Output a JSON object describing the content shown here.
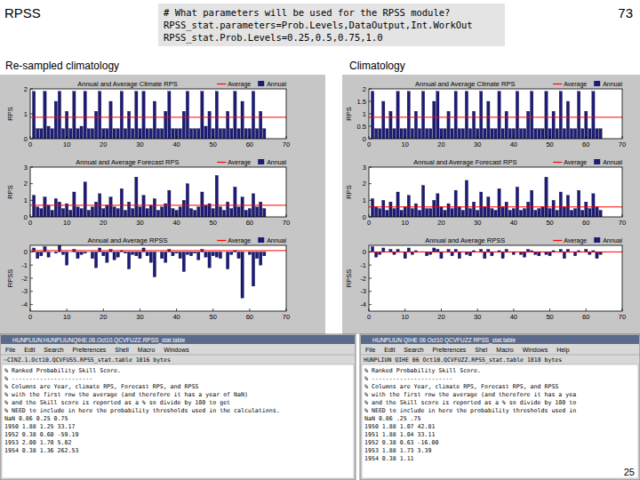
{
  "slide": {
    "title": "RPSS",
    "page_number": "73",
    "footer_number": "25",
    "code": [
      "# What parameters will be used for the RPSS module?",
      "RPSS_stat.parameters=Prob.Levels,DataOutput,Int.WorkOut",
      "RPSS_stat.Prob.Levels=0.25,0.5,0.75,1.0"
    ],
    "panel_labels": [
      "Re-sampled climatology",
      "Climatology"
    ]
  },
  "chart_data": [
    {
      "type": "bar",
      "title": "Annual and Average Climate RPS",
      "y_label": "RPS",
      "legend": "top right",
      "x": [
        1,
        2,
        3,
        4,
        5,
        6,
        7,
        8,
        9,
        10,
        11,
        12,
        13,
        14,
        15,
        16,
        17,
        18,
        19,
        20,
        21,
        22,
        23,
        24,
        25,
        26,
        27,
        28,
        29,
        30,
        31,
        32,
        33,
        34,
        35,
        36,
        37,
        38,
        39,
        40,
        41,
        42,
        43,
        44,
        45,
        46,
        47,
        48,
        49,
        50,
        51,
        52,
        53,
        54,
        55,
        56,
        57,
        58,
        59,
        60,
        61,
        62,
        63,
        64
      ],
      "xlim": [
        0,
        70
      ],
      "xticks": [
        0,
        10,
        20,
        30,
        40,
        50,
        60,
        70
      ],
      "ylim": [
        0,
        2
      ],
      "yticks": [
        0,
        1,
        2
      ],
      "series": [
        {
          "name": "Average",
          "type": "line",
          "color": "#ff0000",
          "x": [
            0,
            70
          ],
          "values": [
            0.86,
            0.86
          ]
        },
        {
          "name": "Annual",
          "type": "bar",
          "color": "#1c1c78",
          "values": [
            1.9,
            0.4,
            0.4,
            1.9,
            0.5,
            0.4,
            1.5,
            1.9,
            0.4,
            1.1,
            0.4,
            1.9,
            0.4,
            0.5,
            1.9,
            0.4,
            0.4,
            1.1,
            1.9,
            0.4,
            0.4,
            1.5,
            0.4,
            0.4,
            1.9,
            0.4,
            1.1,
            0.4,
            1.9,
            0.4,
            1.9,
            0.4,
            0.4,
            1.5,
            0.4,
            0.4,
            1.1,
            1.9,
            0.4,
            0.4,
            0.4,
            1.1,
            1.9,
            0.4,
            0.4,
            0.4,
            1.9,
            0.5,
            1.1,
            0.4,
            1.9,
            0.4,
            0.4,
            1.1,
            0.4,
            1.9,
            0.4,
            1.5,
            0.4,
            0.4,
            1.9,
            0.4,
            1.1,
            0.4
          ]
        }
      ]
    },
    {
      "type": "bar",
      "title": "Annual and Average Forecast RPS",
      "y_label": "RPS",
      "legend": "top right",
      "x": [
        1,
        2,
        3,
        4,
        5,
        6,
        7,
        8,
        9,
        10,
        11,
        12,
        13,
        14,
        15,
        16,
        17,
        18,
        19,
        20,
        21,
        22,
        23,
        24,
        25,
        26,
        27,
        28,
        29,
        30,
        31,
        32,
        33,
        34,
        35,
        36,
        37,
        38,
        39,
        40,
        41,
        42,
        43,
        44,
        45,
        46,
        47,
        48,
        49,
        50,
        51,
        52,
        53,
        54,
        55,
        56,
        57,
        58,
        59,
        60,
        61,
        62,
        63,
        64
      ],
      "xlim": [
        0,
        70
      ],
      "xticks": [
        0,
        10,
        20,
        30,
        40,
        50,
        60,
        70
      ],
      "ylim": [
        0,
        3
      ],
      "yticks": [
        0,
        1,
        2,
        3
      ],
      "series": [
        {
          "name": "Average",
          "type": "line",
          "color": "#ff0000",
          "x": [
            0,
            70
          ],
          "values": [
            0.7,
            0.7
          ]
        },
        {
          "name": "Annual",
          "type": "bar",
          "color": "#1c1c78",
          "values": [
            1.3,
            0.6,
            0.5,
            1.2,
            0.7,
            0.4,
            1.1,
            0.9,
            0.5,
            0.8,
            0.4,
            1.5,
            0.6,
            0.5,
            2.1,
            0.4,
            0.6,
            0.9,
            1.4,
            0.5,
            0.7,
            1.2,
            0.6,
            0.5,
            1.7,
            0.4,
            0.9,
            0.5,
            2.4,
            0.6,
            1.3,
            0.5,
            0.7,
            1.1,
            0.4,
            0.6,
            0.8,
            1.6,
            0.5,
            0.4,
            0.6,
            1.0,
            2.0,
            0.5,
            0.4,
            0.6,
            1.5,
            0.7,
            0.8,
            0.5,
            2.5,
            0.6,
            0.4,
            0.9,
            0.5,
            1.8,
            0.6,
            1.2,
            0.4,
            0.5,
            1.4,
            0.6,
            0.9,
            0.5
          ]
        }
      ]
    },
    {
      "type": "bar",
      "title": "Annual and Average RPSS",
      "y_label": "RPSS",
      "legend": "top right",
      "x": [
        1,
        2,
        3,
        4,
        5,
        6,
        7,
        8,
        9,
        10,
        11,
        12,
        13,
        14,
        15,
        16,
        17,
        18,
        19,
        20,
        21,
        22,
        23,
        24,
        25,
        26,
        27,
        28,
        29,
        30,
        31,
        32,
        33,
        34,
        35,
        36,
        37,
        38,
        39,
        40,
        41,
        42,
        43,
        44,
        45,
        46,
        47,
        48,
        49,
        50,
        51,
        52,
        53,
        54,
        55,
        56,
        57,
        58,
        59,
        60,
        61,
        62,
        63,
        64
      ],
      "xlim": [
        0,
        70
      ],
      "xticks": [
        0,
        10,
        20,
        30,
        40,
        50,
        60,
        70
      ],
      "ylim": [
        -4.5,
        0.5
      ],
      "yticks": [
        -4,
        -3,
        -2,
        -1,
        0
      ],
      "series": [
        {
          "name": "Average",
          "type": "line",
          "color": "#ff0000",
          "x": [
            0,
            70
          ],
          "values": [
            0.1,
            0.1
          ]
        },
        {
          "name": "Annual",
          "type": "bar",
          "color": "#1c1c78",
          "values": [
            0.3,
            -0.5,
            -0.3,
            0.4,
            -0.4,
            0,
            -0.1,
            0.5,
            -0.2,
            -1.0,
            0,
            0.2,
            -0.5,
            -0.2,
            -0.1,
            0,
            -0.5,
            -1.2,
            0.3,
            -0.3,
            -0.8,
            0.2,
            -0.6,
            -0.4,
            0.1,
            -0.1,
            -1.3,
            -0.2,
            -0.3,
            -0.5,
            0.3,
            -0.3,
            -0.8,
            -1.9,
            0,
            -0.5,
            -0.8,
            0.2,
            -0.3,
            -0.1,
            -0.5,
            -1.5,
            -0.2,
            -0.3,
            -0.1,
            -0.6,
            0.2,
            -0.4,
            -1.2,
            -0.3,
            -0.4,
            -0.5,
            0,
            -1.3,
            -0.2,
            0.1,
            -0.5,
            -3.5,
            0,
            -0.2,
            -2.6,
            -0.5,
            -1.0,
            -0.3
          ]
        }
      ]
    },
    {
      "type": "bar",
      "title": "Annual and Average Climate RPS",
      "y_label": "RPS",
      "legend": "top right",
      "x": [
        1,
        2,
        3,
        4,
        5,
        6,
        7,
        8,
        9,
        10,
        11,
        12,
        13,
        14,
        15,
        16,
        17,
        18,
        19,
        20,
        21,
        22,
        23,
        24,
        25,
        26,
        27,
        28,
        29,
        30,
        31,
        32,
        33,
        34,
        35,
        36,
        37,
        38,
        39,
        40,
        41,
        42,
        43,
        44,
        45,
        46,
        47,
        48,
        49,
        50,
        51,
        52,
        53,
        54,
        55,
        56,
        57,
        58,
        59,
        60,
        61,
        62,
        63,
        64
      ],
      "xlim": [
        0,
        70
      ],
      "xticks": [
        0,
        10,
        20,
        30,
        40,
        50,
        60,
        70
      ],
      "ylim": [
        0,
        2
      ],
      "yticks": [
        0,
        0.5,
        1,
        1.5,
        2
      ],
      "series": [
        {
          "name": "Average",
          "type": "line",
          "color": "#ff0000",
          "x": [
            0,
            70
          ],
          "values": [
            0.86,
            0.86
          ]
        },
        {
          "name": "Annual",
          "type": "bar",
          "color": "#1c1c78",
          "values": [
            1.9,
            0.4,
            0.4,
            1.5,
            0.4,
            1.1,
            0.4,
            1.9,
            0.4,
            0.4,
            1.9,
            0.4,
            1.1,
            0.4,
            1.9,
            0.4,
            0.4,
            1.5,
            1.9,
            0.4,
            0.4,
            1.1,
            0.4,
            1.9,
            0.4,
            0.4,
            1.9,
            0.4,
            1.1,
            0.4,
            1.9,
            0.4,
            1.5,
            0.4,
            0.4,
            1.9,
            0.4,
            1.1,
            0.4,
            0.4,
            1.9,
            0.4,
            0.4,
            1.1,
            1.9,
            0.4,
            0.4,
            0.4,
            1.9,
            0.4,
            1.1,
            0.4,
            1.9,
            0.4,
            1.5,
            0.4,
            0.4,
            1.9,
            0.4,
            1.1,
            0.4,
            1.9,
            0.4,
            0.4
          ]
        }
      ]
    },
    {
      "type": "bar",
      "title": "Annual and Average Forecast RPS",
      "y_label": "RPS",
      "legend": "top right",
      "x": [
        1,
        2,
        3,
        4,
        5,
        6,
        7,
        8,
        9,
        10,
        11,
        12,
        13,
        14,
        15,
        16,
        17,
        18,
        19,
        20,
        21,
        22,
        23,
        24,
        25,
        26,
        27,
        28,
        29,
        30,
        31,
        32,
        33,
        34,
        35,
        36,
        37,
        38,
        39,
        40,
        41,
        42,
        43,
        44,
        45,
        46,
        47,
        48,
        49,
        50,
        51,
        52,
        53,
        54,
        55,
        56,
        57,
        58,
        59,
        60,
        61,
        62,
        63,
        64
      ],
      "xlim": [
        0,
        70
      ],
      "xticks": [
        0,
        10,
        20,
        30,
        40,
        50,
        60,
        70
      ],
      "ylim": [
        0,
        3
      ],
      "yticks": [
        0,
        1,
        2,
        3
      ],
      "series": [
        {
          "name": "Average",
          "type": "line",
          "color": "#ff0000",
          "x": [
            0,
            70
          ],
          "values": [
            0.6,
            0.6
          ]
        },
        {
          "name": "Annual",
          "type": "bar",
          "color": "#1c1c78",
          "values": [
            1.1,
            0.6,
            0.5,
            1.0,
            0.4,
            0.9,
            0.5,
            1.5,
            0.4,
            0.6,
            1.3,
            0.5,
            0.8,
            0.4,
            1.9,
            0.5,
            0.5,
            1.0,
            1.4,
            0.6,
            0.4,
            0.8,
            0.5,
            1.6,
            0.6,
            0.4,
            2.2,
            0.5,
            0.9,
            0.4,
            1.5,
            0.6,
            1.2,
            0.5,
            0.4,
            1.7,
            0.6,
            0.9,
            0.4,
            0.5,
            1.8,
            0.4,
            0.5,
            0.9,
            1.6,
            0.4,
            0.5,
            0.6,
            2.4,
            0.5,
            1.0,
            0.4,
            1.5,
            0.6,
            1.3,
            0.4,
            0.5,
            1.6,
            0.4,
            0.9,
            0.5,
            1.4,
            0.6,
            0.4
          ]
        }
      ]
    },
    {
      "type": "bar",
      "title": "Annual and Average RPSS",
      "y_label": "RPSS",
      "legend": "top right",
      "x": [
        1,
        2,
        3,
        4,
        5,
        6,
        7,
        8,
        9,
        10,
        11,
        12,
        13,
        14,
        15,
        16,
        17,
        18,
        19,
        20,
        21,
        22,
        23,
        24,
        25,
        26,
        27,
        28,
        29,
        30,
        31,
        32,
        33,
        34,
        35,
        36,
        37,
        38,
        39,
        40,
        41,
        42,
        43,
        44,
        45,
        46,
        47,
        48,
        49,
        50,
        51,
        52,
        53,
        54,
        55,
        56,
        57,
        58,
        59,
        60,
        61,
        62,
        63,
        64
      ],
      "xlim": [
        0,
        70
      ],
      "xticks": [
        0,
        10,
        20,
        30,
        40,
        50,
        60,
        70
      ],
      "ylim": [
        -4.5,
        0.5
      ],
      "yticks": [
        -4,
        -3,
        -2,
        -1,
        0
      ],
      "series": [
        {
          "name": "Average",
          "type": "line",
          "color": "#ff0000",
          "x": [
            0,
            70
          ],
          "values": [
            0,
            0
          ]
        },
        {
          "name": "Annual",
          "type": "bar",
          "color": "#1c1c78",
          "values": [
            0.4,
            -0.4,
            -0.2,
            0.3,
            0,
            0.2,
            -0.2,
            0.2,
            0,
            -0.5,
            0.3,
            -0.2,
            0.1,
            0,
            0,
            -0.3,
            -0.2,
            0.3,
            0.2,
            -0.5,
            0,
            0.2,
            -0.3,
            0.2,
            -0.5,
            0,
            -0.2,
            -0.3,
            0.1,
            0,
            0.2,
            -0.5,
            0.2,
            -0.3,
            0,
            0.1,
            -0.5,
            0.2,
            0,
            -0.2,
            0,
            -0.2,
            -0.4,
            0.2,
            0.1,
            -0.2,
            -0.3,
            0,
            -0.2,
            -0.3,
            0.1,
            0,
            0.2,
            -0.5,
            0.2,
            0,
            -0.3,
            0.1,
            0,
            0.2,
            -0.2,
            0.1,
            -0.5,
            -0.2
          ]
        }
      ]
    }
  ],
  "text_windows": [
    {
      "title": "HUNPLIUN:HUNPLIUNQIHE.06.Oct10.QCVFUZZ.RPSS_stat.table",
      "menu": [
        "File",
        "Edit",
        "Search",
        "Preferences",
        "Shell",
        "Macro",
        "Windows"
      ],
      "status": "~CINZ.1.Oct10.QCVFUSS.RPSS_stat.table 1016 bytes",
      "lines": [
        "% Ranked Probability Skill Score.",
        "% -----------------------",
        "% Columns are Year, climate RPS, Forecast RPS, and RPSS",
        "% with the first row the average (and therefore it has a year of NaN)",
        "% and the Skill score is reported as a % so divide by 100 to get",
        "% NEED to include in here the probability thresholds used in the calculations.",
        "NaN  0.86  0.25  0.75",
        "1950  1.88  1.25  33.17",
        "1952  0.38  0.60  -59.19",
        "1953  2.00  1.70  5.02",
        "1954  0.38  1.36  262.53"
      ]
    },
    {
      "title": "HUNPLIUN QIHE 06 Oct10 QCVFUZZ RPSS_stat.table",
      "menu": [
        "File",
        "Edit",
        "Search",
        "Preferences",
        "Shel",
        "Macro",
        "Windows",
        "Help"
      ],
      "status": "HUNPLIUN QIHE 06 Oct10.QCVFUZZ.RPSS_stat.table 1818 bytes",
      "lines": [
        "% Ranked Probability Skill Score.",
        "% -----------------------",
        "% Columns are Year, climate RPS, Forecast RPS, and RPSS",
        "% with the first row the average (and therefore it has a yea",
        "% and the Skill score is reported as a % so divide by 100 to",
        "% NEED to include in here the probability thresholds used in",
        "NaN  0.86  .25  .75",
        "1950  1.88  1.07  42.81",
        "1951  1.88  1.04  33.11",
        "1952  0.38  0.63  -16.00",
        "1953  1.88  1.73  3.39",
        "1954  0.38  1.11"
      ]
    }
  ]
}
